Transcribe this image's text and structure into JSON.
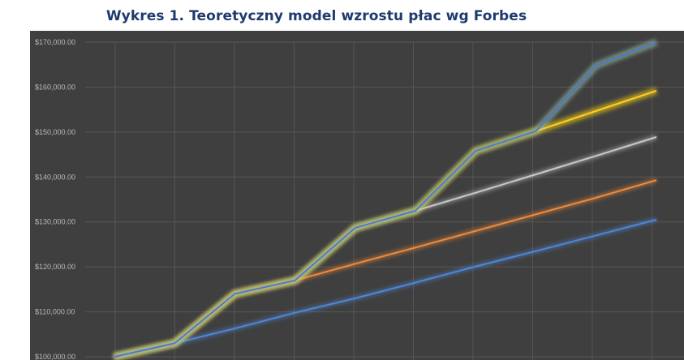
{
  "chart_data": {
    "type": "line",
    "title": "Wykres 1. Teoretyczny model wzrostu płac wg Forbes",
    "xlabel": "",
    "ylabel": "",
    "ylim": [
      100000,
      172000
    ],
    "y_ticks": [
      "$100,000.00",
      "$110,000.00",
      "$120,000.00",
      "$130,000.00",
      "$140,000.00",
      "$150,000.00",
      "$160,000.00",
      "$170,000.00"
    ],
    "y_tick_values": [
      100000,
      110000,
      120000,
      130000,
      140000,
      150000,
      160000,
      170000
    ],
    "x": [
      0,
      1,
      2,
      3,
      4,
      5,
      6,
      7,
      8,
      9
    ],
    "grid": true,
    "background": "#3f3f3f",
    "series": [
      {
        "color": "#4e86d4",
        "values": [
          100000,
          103000,
          106300,
          109800,
          113000,
          116500,
          120100,
          123500,
          127000,
          130500
        ]
      },
      {
        "color": "#f08a3a",
        "values": [
          100000,
          103000,
          114000,
          117000,
          120700,
          124300,
          128000,
          131700,
          135400,
          139300
        ]
      },
      {
        "color": "#c9c9c9",
        "values": [
          100000,
          103000,
          114000,
          117000,
          128700,
          132500,
          136500,
          140600,
          144700,
          148900
        ]
      },
      {
        "color": "#ffd21a",
        "values": [
          100000,
          103000,
          114000,
          117000,
          128700,
          132500,
          145800,
          150200,
          154700,
          159200
        ]
      },
      {
        "color": "#4a78d0",
        "values": [
          100000,
          103000,
          114000,
          117000,
          128700,
          132500,
          145800,
          150200,
          164800,
          170000
        ]
      }
    ]
  }
}
